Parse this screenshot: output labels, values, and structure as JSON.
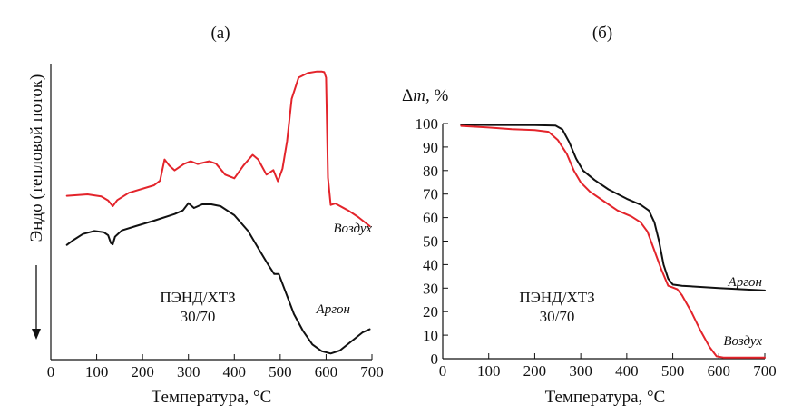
{
  "colors": {
    "air": "#e3242b",
    "argon": "#111111",
    "axis": "#111111"
  },
  "chart_data": [
    {
      "type": "line",
      "panel_label": "(а)",
      "xlabel": "Температура, °С",
      "ylabel": "Эндо (тепловой поток)",
      "xlim": [
        0,
        700
      ],
      "x_ticks": [
        0,
        100,
        200,
        300,
        400,
        500,
        600,
        700
      ],
      "y_units": "arbitrary (heat flow, endo down); y values are relative levels 0–1",
      "ylim": [
        0,
        1
      ],
      "grid": false,
      "annotation": [
        "ПЭНД/ХТЗ",
        "30/70"
      ],
      "series": [
        {
          "name": "Воздух",
          "color_key": "air",
          "points": [
            [
              35,
              0.54
            ],
            [
              80,
              0.545
            ],
            [
              110,
              0.538
            ],
            [
              125,
              0.525
            ],
            [
              135,
              0.506
            ],
            [
              145,
              0.526
            ],
            [
              170,
              0.55
            ],
            [
              225,
              0.575
            ],
            [
              238,
              0.59
            ],
            [
              248,
              0.66
            ],
            [
              258,
              0.64
            ],
            [
              270,
              0.624
            ],
            [
              290,
              0.645
            ],
            [
              305,
              0.654
            ],
            [
              320,
              0.645
            ],
            [
              345,
              0.654
            ],
            [
              360,
              0.646
            ],
            [
              380,
              0.61
            ],
            [
              400,
              0.598
            ],
            [
              420,
              0.64
            ],
            [
              440,
              0.675
            ],
            [
              452,
              0.66
            ],
            [
              470,
              0.61
            ],
            [
              485,
              0.625
            ],
            [
              495,
              0.588
            ],
            [
              505,
              0.63
            ],
            [
              515,
              0.72
            ],
            [
              525,
              0.86
            ],
            [
              540,
              0.93
            ],
            [
              560,
              0.945
            ],
            [
              580,
              0.95
            ],
            [
              590,
              0.95
            ],
            [
              596,
              0.948
            ],
            [
              600,
              0.93
            ],
            [
              604,
              0.6
            ],
            [
              610,
              0.51
            ],
            [
              620,
              0.515
            ],
            [
              650,
              0.49
            ],
            [
              670,
              0.47
            ],
            [
              695,
              0.44
            ]
          ]
        },
        {
          "name": "Аргон",
          "color_key": "argon",
          "points": [
            [
              35,
              0.378
            ],
            [
              50,
              0.395
            ],
            [
              70,
              0.414
            ],
            [
              95,
              0.424
            ],
            [
              115,
              0.42
            ],
            [
              125,
              0.41
            ],
            [
              131,
              0.384
            ],
            [
              135,
              0.38
            ],
            [
              140,
              0.405
            ],
            [
              155,
              0.426
            ],
            [
              185,
              0.44
            ],
            [
              225,
              0.458
            ],
            [
              270,
              0.48
            ],
            [
              288,
              0.492
            ],
            [
              300,
              0.516
            ],
            [
              312,
              0.5
            ],
            [
              330,
              0.512
            ],
            [
              350,
              0.512
            ],
            [
              370,
              0.506
            ],
            [
              400,
              0.476
            ],
            [
              430,
              0.424
            ],
            [
              455,
              0.36
            ],
            [
              475,
              0.31
            ],
            [
              487,
              0.282
            ],
            [
              497,
              0.282
            ],
            [
              510,
              0.23
            ],
            [
              530,
              0.15
            ],
            [
              550,
              0.094
            ],
            [
              570,
              0.05
            ],
            [
              590,
              0.028
            ],
            [
              610,
              0.02
            ],
            [
              630,
              0.03
            ],
            [
              655,
              0.06
            ],
            [
              680,
              0.09
            ],
            [
              695,
              0.1
            ]
          ]
        }
      ]
    },
    {
      "type": "line",
      "panel_label": "(б)",
      "xlabel": "Температура, °С",
      "ylabel": "Δm, %",
      "ylabel_parts": {
        "prefix": "Δ",
        "variable": "m",
        "suffix": ", %"
      },
      "xlim": [
        0,
        700
      ],
      "ylim": [
        0,
        100
      ],
      "x_ticks": [
        0,
        100,
        200,
        300,
        400,
        500,
        600,
        700
      ],
      "y_ticks": [
        0,
        10,
        20,
        30,
        40,
        50,
        60,
        70,
        80,
        90,
        100
      ],
      "grid": false,
      "annotation": [
        "ПЭНД/ХТЗ",
        "30/70"
      ],
      "series": [
        {
          "name": "Аргон",
          "color_key": "argon",
          "points": [
            [
              40,
              99.5
            ],
            [
              100,
              99.4
            ],
            [
              200,
              99.3
            ],
            [
              245,
              99.1
            ],
            [
              260,
              97.5
            ],
            [
              275,
              92
            ],
            [
              290,
              85
            ],
            [
              305,
              80
            ],
            [
              330,
              76
            ],
            [
              360,
              72
            ],
            [
              400,
              68
            ],
            [
              430,
              65.5
            ],
            [
              448,
              63
            ],
            [
              460,
              58
            ],
            [
              470,
              50
            ],
            [
              480,
              40
            ],
            [
              490,
              34
            ],
            [
              500,
              31.5
            ],
            [
              520,
              31
            ],
            [
              600,
              30
            ],
            [
              700,
              29
            ]
          ]
        },
        {
          "name": "Воздух",
          "color_key": "air",
          "points": [
            [
              40,
              99
            ],
            [
              100,
              98.3
            ],
            [
              150,
              97.6
            ],
            [
              200,
              97.2
            ],
            [
              230,
              96.5
            ],
            [
              250,
              93
            ],
            [
              270,
              87
            ],
            [
              285,
              80
            ],
            [
              300,
              75
            ],
            [
              320,
              71
            ],
            [
              350,
              67
            ],
            [
              380,
              63
            ],
            [
              410,
              60.5
            ],
            [
              430,
              58
            ],
            [
              445,
              54
            ],
            [
              460,
              46
            ],
            [
              475,
              38
            ],
            [
              490,
              31
            ],
            [
              510,
              29.5
            ],
            [
              520,
              27
            ],
            [
              540,
              20
            ],
            [
              560,
              12
            ],
            [
              580,
              5
            ],
            [
              595,
              1
            ],
            [
              610,
              0.5
            ],
            [
              700,
              0.5
            ]
          ]
        }
      ]
    }
  ]
}
